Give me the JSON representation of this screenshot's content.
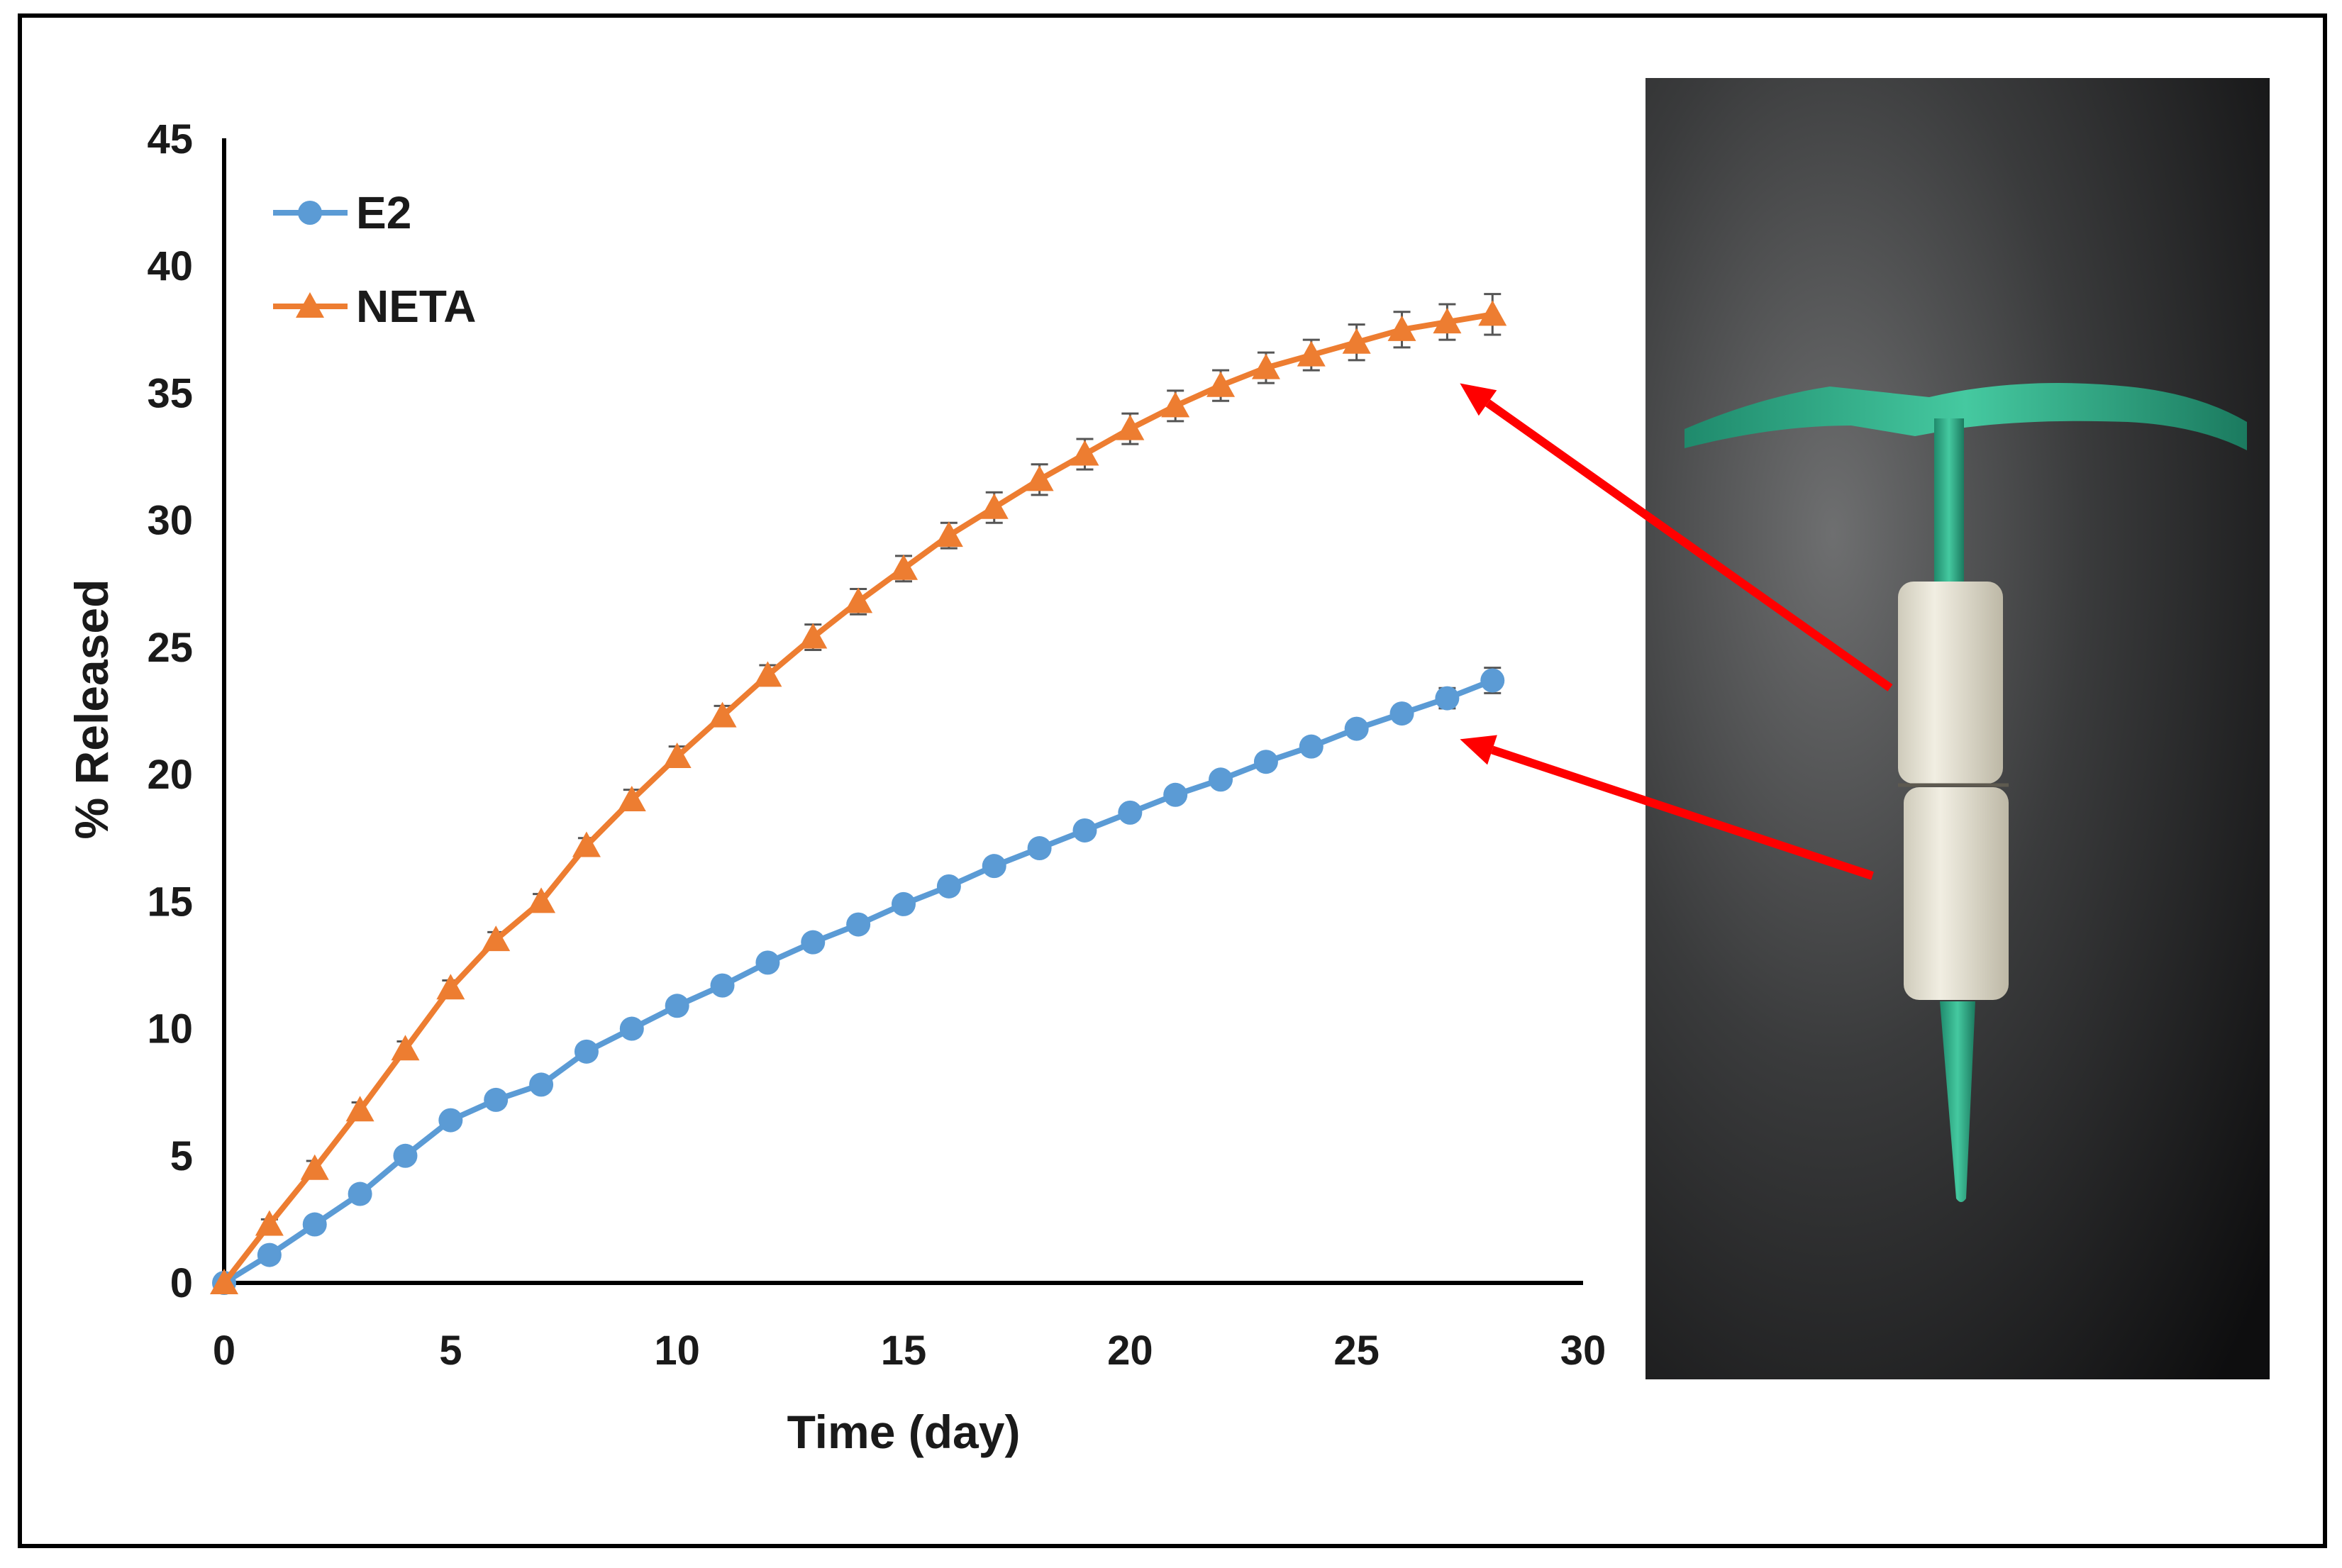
{
  "chart_data": {
    "type": "line",
    "title": "",
    "xlabel": "Time (day)",
    "ylabel": "% Released",
    "xlim": [
      0,
      30
    ],
    "ylim": [
      0,
      45
    ],
    "xticks": [
      0,
      5,
      10,
      15,
      20,
      25,
      30
    ],
    "yticks": [
      0,
      5,
      10,
      15,
      20,
      25,
      30,
      35,
      40,
      45
    ],
    "grid": false,
    "legend_position": "top-left",
    "error_bars": true,
    "series": [
      {
        "name": "E2",
        "color": "#5b9bd5",
        "marker": "circle",
        "x": [
          0,
          1,
          2,
          3,
          4,
          5,
          6,
          7,
          8,
          9,
          10,
          11,
          12,
          13,
          14,
          15,
          16,
          17,
          18,
          19,
          20,
          21,
          22,
          23,
          24,
          25,
          26,
          27,
          28
        ],
        "values": [
          0,
          1.1,
          2.3,
          3.5,
          5.0,
          6.4,
          7.2,
          7.8,
          9.1,
          10.0,
          10.9,
          11.7,
          12.6,
          13.4,
          14.1,
          14.9,
          15.6,
          16.4,
          17.1,
          17.8,
          18.5,
          19.2,
          19.8,
          20.5,
          21.1,
          21.8,
          22.4,
          23.0,
          23.7
        ],
        "errors": [
          0,
          0.2,
          0.2,
          0.2,
          0.2,
          0.2,
          0.2,
          0.2,
          0.2,
          0.2,
          0.2,
          0.2,
          0.2,
          0.2,
          0.2,
          0.2,
          0.2,
          0.2,
          0.2,
          0.2,
          0.2,
          0.2,
          0.2,
          0.2,
          0.3,
          0.3,
          0.3,
          0.4,
          0.5
        ]
      },
      {
        "name": "NETA",
        "color": "#ed7d31",
        "marker": "triangle",
        "x": [
          0,
          1,
          2,
          3,
          4,
          5,
          6,
          7,
          8,
          9,
          10,
          11,
          12,
          13,
          14,
          15,
          16,
          17,
          18,
          19,
          20,
          21,
          22,
          23,
          24,
          25,
          26,
          27,
          28
        ],
        "values": [
          0,
          2.3,
          4.5,
          6.8,
          9.2,
          11.6,
          13.5,
          15.0,
          17.2,
          19.0,
          20.7,
          22.3,
          23.9,
          25.4,
          26.8,
          28.1,
          29.4,
          30.5,
          31.6,
          32.6,
          33.6,
          34.5,
          35.3,
          36.0,
          36.5,
          37.0,
          37.5,
          37.8,
          38.1
        ],
        "errors": [
          0,
          0.2,
          0.3,
          0.3,
          0.3,
          0.3,
          0.3,
          0.3,
          0.3,
          0.4,
          0.4,
          0.4,
          0.4,
          0.5,
          0.5,
          0.5,
          0.5,
          0.6,
          0.6,
          0.6,
          0.6,
          0.6,
          0.6,
          0.6,
          0.6,
          0.7,
          0.7,
          0.7,
          0.8
        ]
      }
    ],
    "annotations": [
      {
        "type": "arrow",
        "points_to": "NETA",
        "at_x": 27,
        "at_y": 35.5,
        "from": "upper sleeve of device in photo",
        "color": "#ff0000"
      },
      {
        "type": "arrow",
        "points_to": "E2",
        "at_x": 27,
        "at_y": 21.5,
        "from": "lower sleeve of device in photo",
        "color": "#ff0000"
      }
    ],
    "inset_photo": {
      "subject": "T-shaped intrauterine device with green arms and two white drug-loaded sleeves on dark background"
    }
  }
}
